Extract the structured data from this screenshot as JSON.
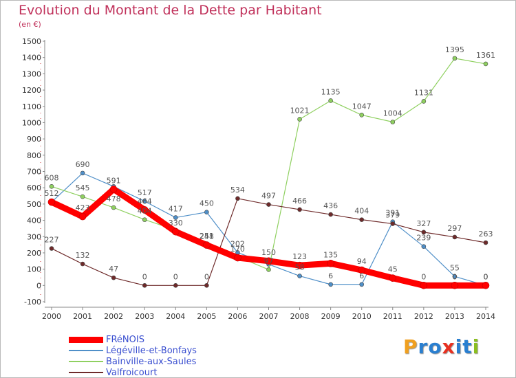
{
  "title": "Evolution du Montant de la Dette par Habitant",
  "subtitle": "(en €)",
  "brand": {
    "text": "Proxiti",
    "letters": [
      "P",
      "r",
      "o",
      "x",
      "i",
      "t",
      "i"
    ],
    "colors": [
      "#f0a020",
      "#2a7fd0",
      "#2a7fd0",
      "#e83020",
      "#2a7fd0",
      "#2a7fd0",
      "#8bbf20"
    ]
  },
  "chart_data": {
    "type": "line",
    "x": [
      2000,
      2001,
      2002,
      2003,
      2004,
      2005,
      2006,
      2007,
      2008,
      2009,
      2010,
      2011,
      2012,
      2013,
      2014
    ],
    "ylim": [
      -100,
      1500
    ],
    "yticks": [
      -100,
      0,
      100,
      200,
      300,
      400,
      500,
      600,
      700,
      800,
      900,
      1000,
      1100,
      1200,
      1300,
      1400,
      1500
    ],
    "grid": false,
    "legend_position": "bottom-left",
    "series": [
      {
        "name": "FRéNOIS",
        "color": "#ff0000",
        "width": 9,
        "values": [
          512,
          423,
          591,
          464,
          330,
          248,
          170,
          150,
          123,
          135,
          94,
          45,
          0,
          0,
          0
        ],
        "labels": [
          "512",
          "423",
          "591",
          "464",
          "330",
          "248",
          "170",
          "150",
          "123",
          "135",
          "94",
          "45",
          "0",
          "0",
          "0"
        ]
      },
      {
        "name": "Légéville-et-Bonfays",
        "color": "#4f8fc8",
        "width": 1.2,
        "values": [
          512,
          690,
          608,
          517,
          417,
          450,
          202,
          130,
          58,
          6,
          6,
          391,
          239,
          55,
          0
        ],
        "labels": [
          "",
          "690",
          "",
          "517",
          "417",
          "450",
          "202",
          "",
          "58",
          "6",
          "6",
          "391",
          "239",
          "55",
          "0"
        ]
      },
      {
        "name": "Bainville-aux-Saules",
        "color": "#8fd060",
        "width": 1.2,
        "values": [
          608,
          545,
          478,
          404,
          340,
          251,
          177,
          97,
          1021,
          1135,
          1047,
          1004,
          1131,
          1395,
          1361
        ],
        "labels": [
          "608",
          "545",
          "478",
          "404",
          "",
          "251",
          "",
          "97",
          "1021",
          "1135",
          "1047",
          "1004",
          "1131",
          "1395",
          "1361"
        ]
      },
      {
        "name": "Valfroicourt",
        "color": "#6e2a2a",
        "width": 1.2,
        "values": [
          227,
          132,
          47,
          0,
          0,
          0,
          534,
          497,
          466,
          436,
          404,
          379,
          327,
          297,
          263
        ],
        "labels": [
          "227",
          "132",
          "47",
          "0",
          "0",
          "0",
          "534",
          "497",
          "466",
          "436",
          "404",
          "379",
          "327",
          "297",
          "263"
        ]
      }
    ]
  }
}
